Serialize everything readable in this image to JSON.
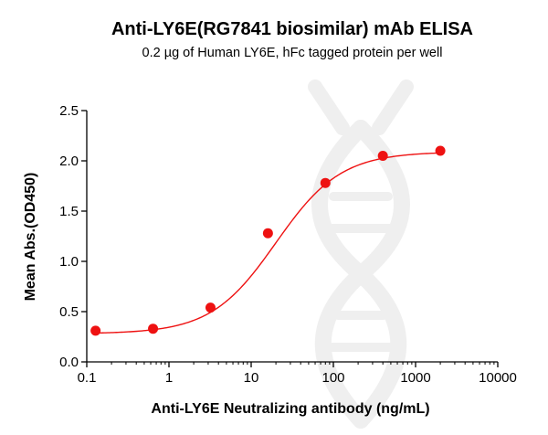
{
  "chart_data": {
    "type": "scatter",
    "title": "Anti-LY6E(RG7841 biosimilar) mAb ELISA",
    "subtitle": "0.2 µg of Human LY6E, hFc tagged protein per well",
    "xlabel": "Anti-LY6E Neutralizing antibody (ng/mL)",
    "ylabel": "Mean Abs.(OD450)",
    "xscale": "log",
    "xlim": [
      0.1,
      10000
    ],
    "ylim": [
      0.0,
      2.5
    ],
    "x_tick_labels": [
      "0.1",
      "1",
      "10",
      "100",
      "1000",
      "10000"
    ],
    "y_tick_labels": [
      "0.0",
      "0.5",
      "1.0",
      "1.5",
      "2.0",
      "2.5"
    ],
    "grid": false,
    "series": [
      {
        "x": [
          0.128,
          0.64,
          3.2,
          16,
          80,
          400,
          2000
        ],
        "y": [
          0.31,
          0.33,
          0.54,
          1.28,
          1.78,
          2.05,
          2.1
        ],
        "color": "#ee1111",
        "fit": "4PL"
      }
    ],
    "fit_params": {
      "bottom": 0.28,
      "top": 2.09,
      "ec50": 20,
      "hill": 1.1
    }
  }
}
